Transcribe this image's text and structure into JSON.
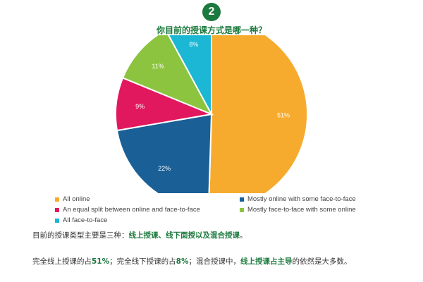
{
  "badge": "2",
  "question": "你目前的授课方式是哪一种？",
  "chart_data": {
    "type": "pie",
    "slices": [
      {
        "label": "All online",
        "value": 51,
        "display": "51%",
        "color": "#f7ab2e"
      },
      {
        "label": "Mostly online with some face-to-face",
        "value": 22,
        "display": "22%",
        "color": "#1a5f96"
      },
      {
        "label": "An equal split between online and face-to-face",
        "value": 9,
        "display": "9%",
        "color": "#e2185f"
      },
      {
        "label": "Mostly face-to-face with some online",
        "value": 11,
        "display": "11%",
        "color": "#8cc43f"
      },
      {
        "label": "All face-to-face",
        "value": 8,
        "display": "8%",
        "color": "#1bb7d4"
      }
    ],
    "legend_position": "bottom"
  },
  "text": {
    "p1_a": "目前的授课类型主要是三种：",
    "p1_b": "线上授课、线下面授以及混合授课",
    "p1_c": "。",
    "p2_a": "完全线上授课的占",
    "p2_b": "51%",
    "p2_c": "；完全线下授课的占",
    "p2_d": "8%",
    "p2_e": "；混合授课中，",
    "p2_f": "线上授课占主导",
    "p2_g": "的依然是大多数。"
  }
}
